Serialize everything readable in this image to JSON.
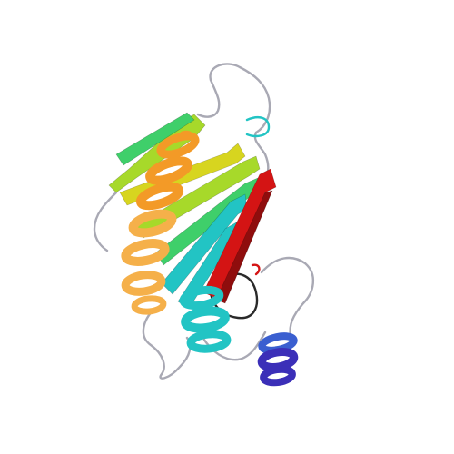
{
  "image": {
    "background": "#ffffff",
    "palette": {
      "n_terminus": "#3b2fb8",
      "blue": "#3a5fd0",
      "cyan": "#22c4c4",
      "green": "#3fcf6a",
      "lime": "#a7d92a",
      "yellow": "#d7d51f",
      "orange": "#f39a27",
      "light_orange": "#f5b04a",
      "red": "#d41414",
      "dark_red": "#8f0d0d",
      "coil_grey": "#a9a9b4",
      "coil_dark": "#2a2a2a"
    }
  }
}
